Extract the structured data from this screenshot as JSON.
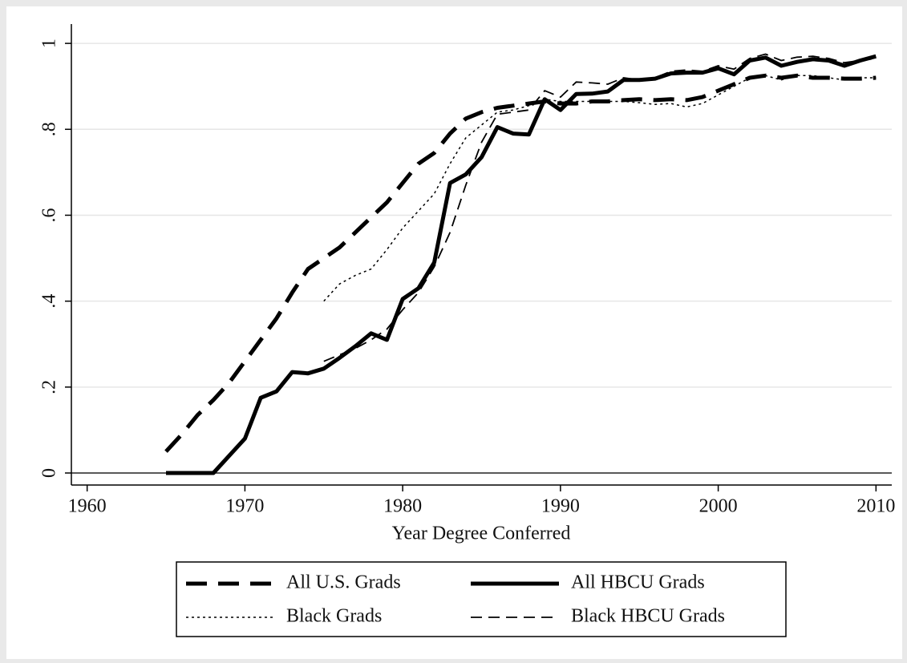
{
  "chart_data": {
    "type": "line",
    "x_label": "Year Degree Conferred",
    "x": [
      1965,
      1966,
      1967,
      1968,
      1969,
      1970,
      1971,
      1972,
      1973,
      1974,
      1975,
      1976,
      1977,
      1978,
      1979,
      1980,
      1981,
      1982,
      1983,
      1984,
      1985,
      1986,
      1987,
      1988,
      1989,
      1990,
      1991,
      1992,
      1993,
      1994,
      1995,
      1996,
      1997,
      1998,
      1999,
      2000,
      2001,
      2002,
      2003,
      2004,
      2005,
      2006,
      2007,
      2008,
      2009,
      2010
    ],
    "series": [
      {
        "name": "All U.S. Grads",
        "color": "#000000",
        "line_style": "long-dash",
        "width": 5,
        "values": [
          0.05,
          0.09,
          0.135,
          0.17,
          0.21,
          0.26,
          0.31,
          0.36,
          0.42,
          0.475,
          0.5,
          0.525,
          0.56,
          0.595,
          0.63,
          0.675,
          0.72,
          0.745,
          0.79,
          0.825,
          0.84,
          0.85,
          0.855,
          0.86,
          0.865,
          0.86,
          0.86,
          0.865,
          0.865,
          0.868,
          0.87,
          0.868,
          0.87,
          0.868,
          0.875,
          0.89,
          0.905,
          0.92,
          0.925,
          0.92,
          0.925,
          0.92,
          0.92,
          0.918,
          0.918,
          0.92
        ]
      },
      {
        "name": "All HBCU Grads",
        "color": "#000000",
        "line_style": "solid",
        "width": 5,
        "values": [
          0,
          0,
          0,
          0,
          0.04,
          0.08,
          0.175,
          0.19,
          0.235,
          0.232,
          0.243,
          0.268,
          0.295,
          0.325,
          0.31,
          0.405,
          0.43,
          0.49,
          0.675,
          0.695,
          0.735,
          0.805,
          0.79,
          0.788,
          0.87,
          0.845,
          0.882,
          0.883,
          0.888,
          0.915,
          0.915,
          0.918,
          0.93,
          0.932,
          0.932,
          0.942,
          0.928,
          0.96,
          0.967,
          0.948,
          0.957,
          0.963,
          0.96,
          0.948,
          0.96,
          0.97
        ]
      },
      {
        "name": "Black Grads",
        "color": "#000000",
        "line_style": "dot",
        "width": 1.5,
        "values": [
          null,
          null,
          null,
          null,
          null,
          null,
          null,
          null,
          null,
          null,
          0.4,
          0.44,
          0.46,
          0.475,
          0.52,
          0.57,
          0.61,
          0.65,
          0.72,
          0.78,
          0.81,
          0.84,
          0.845,
          0.855,
          0.87,
          0.865,
          0.865,
          0.865,
          0.865,
          0.865,
          0.862,
          0.858,
          0.86,
          0.852,
          0.86,
          0.88,
          0.9,
          0.92,
          0.925,
          0.915,
          0.925,
          0.925,
          0.92,
          0.915,
          0.92,
          0.92
        ]
      },
      {
        "name": "Black HBCU Grads",
        "color": "#000000",
        "line_style": "dash",
        "width": 1.8,
        "values": [
          null,
          null,
          null,
          null,
          null,
          null,
          null,
          null,
          null,
          null,
          0.26,
          0.275,
          0.29,
          0.31,
          0.335,
          0.38,
          0.42,
          0.48,
          0.56,
          0.67,
          0.77,
          0.835,
          0.84,
          0.845,
          0.89,
          0.875,
          0.91,
          0.908,
          0.905,
          0.92,
          0.915,
          0.92,
          0.935,
          0.938,
          0.935,
          0.948,
          0.94,
          0.965,
          0.975,
          0.96,
          0.968,
          0.97,
          0.965,
          0.955,
          0.96,
          0.965
        ]
      }
    ],
    "xlim": [
      1959,
      2011
    ],
    "xticks": [
      1960,
      1970,
      1980,
      1990,
      2000,
      2010
    ],
    "ylim": [
      -0.028,
      1.045
    ],
    "yticks": [
      0,
      {
        "value": 0.2,
        "label": ".2"
      },
      {
        "value": 0.4,
        "label": ".4"
      },
      {
        "value": 0.6,
        "label": ".6"
      },
      {
        "value": 0.8,
        "label": ".8"
      },
      1
    ],
    "grid": true,
    "legend": "bottom"
  }
}
